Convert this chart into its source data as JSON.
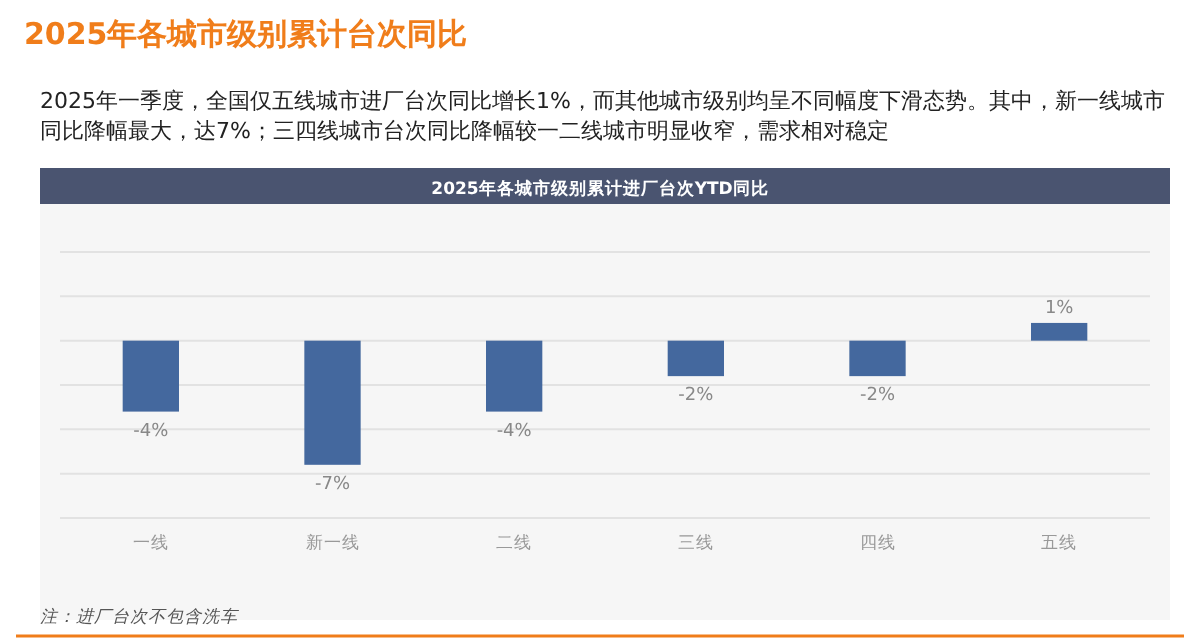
{
  "chart_data": {
    "type": "bar",
    "title": "2025年各城市级别累计台次同比",
    "subtitle": "2025年一季度，全国仅五线城市进厂台次同比增长1%，而其他城市级别均呈不同幅度下滑态势。其中，新一线城市同比降幅最大，达7%；三四线城市台次同比降幅较一二线城市明显收窄，需求相对稳定",
    "annotations": [
      "2025年各城市级别累计进厂台次YTD同比",
      "注：进厂台次不包含洗车"
    ],
    "categories": [
      "一线",
      "新一线",
      "二线",
      "三线",
      "四线",
      "五线"
    ],
    "values": [
      -4,
      -7,
      -4,
      -2,
      -2,
      1
    ],
    "value_labels": [
      "-4%",
      "-7%",
      "-4%",
      "-2%",
      "-2%",
      "1%"
    ],
    "color": "#44689e",
    "ylim": [
      -10,
      5
    ],
    "yticks": [
      {
        "value": -10,
        "label": null
      },
      {
        "value": -7.5,
        "label": null
      },
      {
        "value": -5,
        "label": null
      },
      {
        "value": -2.5,
        "label": null
      },
      {
        "value": 0,
        "label": null
      },
      {
        "value": 2.5,
        "label": null
      },
      {
        "value": 5,
        "label": null
      }
    ],
    "grid": "y"
  }
}
